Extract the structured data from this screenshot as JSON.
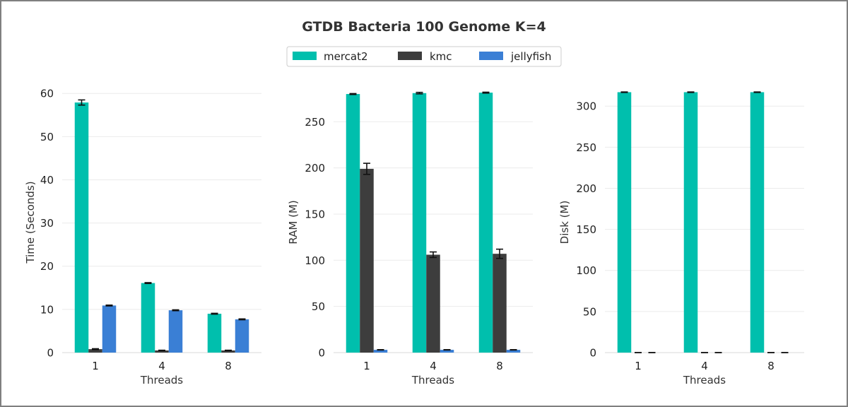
{
  "chart_data": {
    "title": "GTDB Bacteria 100 Genome K=4",
    "type": "bar",
    "series_names": [
      "mercat2",
      "kmc",
      "jellyfish"
    ],
    "colors": {
      "mercat2": "#00bfad",
      "kmc": "#3d3d3d",
      "jellyfish": "#3a7fd5"
    },
    "legend_position": "top-center",
    "grid": true,
    "panels": [
      {
        "type": "bar",
        "categories": [
          "1",
          "4",
          "8"
        ],
        "xlabel": "Threads",
        "ylabel": "Time (Seconds)",
        "ylim": [
          0,
          62
        ],
        "yticks": [
          "0",
          "10",
          "20",
          "30",
          "40",
          "50",
          "60"
        ],
        "series": [
          {
            "name": "mercat2",
            "values": [
              57.9,
              16.1,
              9.0
            ],
            "errors": [
              0.6,
              0.1,
              0.1
            ]
          },
          {
            "name": "kmc",
            "values": [
              0.8,
              0.5,
              0.5
            ],
            "errors": [
              0.1,
              0.05,
              0.05
            ]
          },
          {
            "name": "jellyfish",
            "values": [
              10.9,
              9.8,
              7.7
            ],
            "errors": [
              0.1,
              0.1,
              0.1
            ]
          }
        ]
      },
      {
        "type": "bar",
        "categories": [
          "1",
          "4",
          "8"
        ],
        "xlabel": "Threads",
        "ylabel": "RAM (M)",
        "ylim": [
          0,
          290
        ],
        "yticks": [
          "0",
          "50",
          "100",
          "150",
          "200",
          "250"
        ],
        "series": [
          {
            "name": "mercat2",
            "values": [
              280,
              281,
              281.5
            ],
            "errors": [
              0.5,
              0.8,
              0.5
            ]
          },
          {
            "name": "kmc",
            "values": [
              199,
              106,
              107
            ],
            "errors": [
              6,
              3,
              5
            ]
          },
          {
            "name": "jellyfish",
            "values": [
              3,
              3,
              3
            ],
            "errors": [
              0.2,
              0.2,
              0.2
            ]
          }
        ]
      },
      {
        "type": "bar",
        "categories": [
          "1",
          "4",
          "8"
        ],
        "xlabel": "Threads",
        "ylabel": "Disk (M)",
        "ylim": [
          0,
          326
        ],
        "yticks": [
          "0",
          "50",
          "100",
          "150",
          "200",
          "250",
          "300"
        ],
        "series": [
          {
            "name": "mercat2",
            "values": [
              317,
              317,
              317
            ],
            "errors": [
              0.3,
              0.3,
              0.3
            ]
          },
          {
            "name": "kmc",
            "values": [
              0,
              0,
              0
            ],
            "errors": [
              0,
              0,
              0
            ]
          },
          {
            "name": "jellyfish",
            "values": [
              0,
              0,
              0
            ],
            "errors": [
              0,
              0,
              0
            ]
          }
        ]
      }
    ]
  }
}
